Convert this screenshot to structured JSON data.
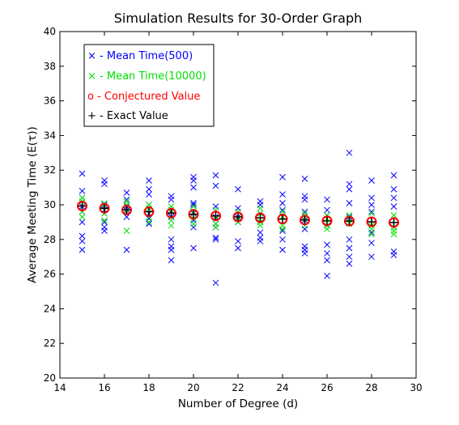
{
  "chart_data": {
    "type": "scatter",
    "title": "Simulation Results for 30-Order Graph",
    "xlabel": "Number of Degree (d)",
    "ylabel": "Average Meeting Time (E(τ))",
    "xlim": [
      14,
      30
    ],
    "ylim": [
      20,
      40
    ],
    "xticks": [
      14,
      16,
      18,
      20,
      22,
      24,
      26,
      28,
      30
    ],
    "yticks": [
      20,
      22,
      24,
      26,
      28,
      30,
      32,
      34,
      36,
      38,
      40
    ],
    "grid": false,
    "legend_position": "top-left",
    "series": [
      {
        "name": "× - Mean Time(500)",
        "marker": "x",
        "color": "#0000ff",
        "points": [
          [
            15,
            31.8
          ],
          [
            15,
            30.8
          ],
          [
            15,
            30.4
          ],
          [
            15,
            29.9
          ],
          [
            15,
            29.6
          ],
          [
            15,
            29.0
          ],
          [
            15,
            28.2
          ],
          [
            15,
            27.9
          ],
          [
            15,
            27.4
          ],
          [
            16,
            31.4
          ],
          [
            16,
            31.2
          ],
          [
            16,
            30.0
          ],
          [
            16,
            29.7
          ],
          [
            16,
            29.5
          ],
          [
            16,
            29.0
          ],
          [
            16,
            28.7
          ],
          [
            16,
            28.5
          ],
          [
            17,
            30.7
          ],
          [
            17,
            30.3
          ],
          [
            17,
            29.9
          ],
          [
            17,
            29.7
          ],
          [
            17,
            29.3
          ],
          [
            17,
            27.4
          ],
          [
            18,
            31.4
          ],
          [
            18,
            30.9
          ],
          [
            18,
            30.6
          ],
          [
            18,
            30.0
          ],
          [
            18,
            29.5
          ],
          [
            18,
            29.2
          ],
          [
            18,
            28.9
          ],
          [
            19,
            30.5
          ],
          [
            19,
            30.3
          ],
          [
            19,
            29.6
          ],
          [
            19,
            29.3
          ],
          [
            19,
            28.0
          ],
          [
            19,
            27.6
          ],
          [
            19,
            27.4
          ],
          [
            19,
            26.8
          ],
          [
            20,
            31.6
          ],
          [
            20,
            31.4
          ],
          [
            20,
            31.0
          ],
          [
            20,
            30.1
          ],
          [
            20,
            30.0
          ],
          [
            20,
            29.5
          ],
          [
            20,
            29.1
          ],
          [
            20,
            28.7
          ],
          [
            20,
            27.5
          ],
          [
            21,
            31.7
          ],
          [
            21,
            31.1
          ],
          [
            21,
            29.9
          ],
          [
            21,
            29.3
          ],
          [
            21,
            28.9
          ],
          [
            21,
            28.7
          ],
          [
            21,
            28.1
          ],
          [
            21,
            28.0
          ],
          [
            21,
            25.5
          ],
          [
            22,
            30.9
          ],
          [
            22,
            29.8
          ],
          [
            22,
            29.3
          ],
          [
            22,
            29.0
          ],
          [
            22,
            27.9
          ],
          [
            22,
            27.5
          ],
          [
            23,
            30.2
          ],
          [
            23,
            30.0
          ],
          [
            23,
            29.5
          ],
          [
            23,
            29.0
          ],
          [
            23,
            28.4
          ],
          [
            23,
            28.1
          ],
          [
            23,
            27.9
          ],
          [
            24,
            31.6
          ],
          [
            24,
            30.6
          ],
          [
            24,
            30.1
          ],
          [
            24,
            29.7
          ],
          [
            24,
            29.3
          ],
          [
            24,
            28.5
          ],
          [
            24,
            28.0
          ],
          [
            24,
            27.4
          ],
          [
            25,
            31.5
          ],
          [
            25,
            30.5
          ],
          [
            25,
            30.3
          ],
          [
            25,
            29.6
          ],
          [
            25,
            29.1
          ],
          [
            25,
            28.6
          ],
          [
            25,
            27.6
          ],
          [
            25,
            27.4
          ],
          [
            25,
            27.2
          ],
          [
            26,
            30.3
          ],
          [
            26,
            29.7
          ],
          [
            26,
            29.4
          ],
          [
            26,
            28.8
          ],
          [
            26,
            27.7
          ],
          [
            26,
            27.2
          ],
          [
            26,
            26.8
          ],
          [
            26,
            25.9
          ],
          [
            27,
            33.0
          ],
          [
            27,
            31.2
          ],
          [
            27,
            30.9
          ],
          [
            27,
            30.1
          ],
          [
            27,
            29.3
          ],
          [
            27,
            28.0
          ],
          [
            27,
            27.5
          ],
          [
            27,
            27.0
          ],
          [
            27,
            26.6
          ],
          [
            28,
            31.4
          ],
          [
            28,
            30.4
          ],
          [
            28,
            30.0
          ],
          [
            28,
            29.6
          ],
          [
            28,
            28.4
          ],
          [
            28,
            27.8
          ],
          [
            28,
            27.0
          ],
          [
            29,
            31.7
          ],
          [
            29,
            30.9
          ],
          [
            29,
            30.4
          ],
          [
            29,
            29.9
          ],
          [
            29,
            28.7
          ],
          [
            29,
            27.3
          ],
          [
            29,
            27.1
          ]
        ]
      },
      {
        "name": "× - Mean Time(10000)",
        "marker": "x",
        "color": "#00e000",
        "points": [
          [
            15,
            30.4
          ],
          [
            15,
            30.2
          ],
          [
            15,
            29.6
          ],
          [
            15,
            29.3
          ],
          [
            16,
            30.1
          ],
          [
            16,
            29.9
          ],
          [
            16,
            29.5
          ],
          [
            16,
            29.1
          ],
          [
            17,
            30.2
          ],
          [
            17,
            30.0
          ],
          [
            17,
            29.6
          ],
          [
            17,
            28.5
          ],
          [
            18,
            30.0
          ],
          [
            18,
            29.8
          ],
          [
            18,
            29.3
          ],
          [
            18,
            29.0
          ],
          [
            19,
            29.9
          ],
          [
            19,
            29.7
          ],
          [
            19,
            29.1
          ],
          [
            19,
            28.8
          ],
          [
            20,
            29.9
          ],
          [
            20,
            29.6
          ],
          [
            20,
            29.2
          ],
          [
            20,
            28.9
          ],
          [
            21,
            29.7
          ],
          [
            21,
            29.2
          ],
          [
            21,
            28.9
          ],
          [
            21,
            28.7
          ],
          [
            22,
            29.6
          ],
          [
            22,
            29.2
          ],
          [
            22,
            29.0
          ],
          [
            23,
            29.8
          ],
          [
            23,
            29.5
          ],
          [
            23,
            29.0
          ],
          [
            23,
            28.8
          ],
          [
            24,
            29.6
          ],
          [
            24,
            29.3
          ],
          [
            24,
            28.8
          ],
          [
            24,
            28.6
          ],
          [
            25,
            29.5
          ],
          [
            25,
            29.3
          ],
          [
            25,
            28.8
          ],
          [
            26,
            29.4
          ],
          [
            26,
            29.2
          ],
          [
            26,
            28.8
          ],
          [
            26,
            28.6
          ],
          [
            27,
            29.4
          ],
          [
            27,
            29.2
          ],
          [
            27,
            28.9
          ],
          [
            28,
            29.5
          ],
          [
            28,
            28.8
          ],
          [
            28,
            28.6
          ],
          [
            28,
            28.3
          ],
          [
            29,
            29.4
          ],
          [
            29,
            28.7
          ],
          [
            29,
            28.5
          ],
          [
            29,
            28.3
          ]
        ]
      },
      {
        "name": "o - Conjectured Value",
        "marker": "o",
        "color": "#ff0000",
        "points": [
          [
            15,
            29.93
          ],
          [
            16,
            29.8
          ],
          [
            17,
            29.7
          ],
          [
            18,
            29.6
          ],
          [
            19,
            29.52
          ],
          [
            20,
            29.45
          ],
          [
            21,
            29.36
          ],
          [
            22,
            29.3
          ],
          [
            23,
            29.25
          ],
          [
            24,
            29.18
          ],
          [
            25,
            29.12
          ],
          [
            26,
            29.07
          ],
          [
            27,
            29.06
          ],
          [
            28,
            29.02
          ],
          [
            29,
            28.98
          ]
        ]
      },
      {
        "name": "+ - Exact Value",
        "marker": "+",
        "color": "#000000",
        "points": [
          [
            15,
            29.93
          ],
          [
            16,
            29.8
          ],
          [
            17,
            29.7
          ],
          [
            18,
            29.6
          ],
          [
            19,
            29.52
          ],
          [
            20,
            29.45
          ],
          [
            21,
            29.36
          ],
          [
            22,
            29.3
          ],
          [
            23,
            29.25
          ],
          [
            24,
            29.18
          ],
          [
            25,
            29.12
          ],
          [
            26,
            29.07
          ],
          [
            27,
            29.06
          ],
          [
            28,
            29.02
          ],
          [
            29,
            28.98
          ]
        ]
      }
    ]
  }
}
